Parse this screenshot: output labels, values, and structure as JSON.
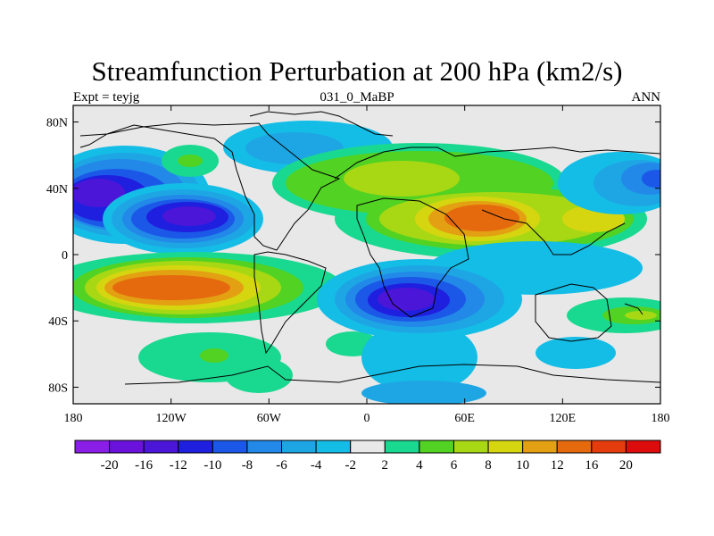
{
  "title": "Streamfunction Perturbation at 200 hPa (km2/s)",
  "subtitle_left": "Expt = teyjg",
  "subtitle_center": "031_0_MaBP",
  "subtitle_right": "ANN",
  "chart_data": {
    "type": "heatmap",
    "lon_ticks": [
      "180",
      "120W",
      "60W",
      "0",
      "60E",
      "120E",
      "180"
    ],
    "lat_ticks": [
      "80N",
      "40N",
      "0",
      "40S",
      "80S"
    ],
    "colorbar": {
      "levels": [
        "-20",
        "-16",
        "-12",
        "-10",
        "-8",
        "-6",
        "-4",
        "-2",
        "2",
        "4",
        "6",
        "8",
        "10",
        "12",
        "16",
        "20"
      ],
      "colors": [
        "#8a1ee6",
        "#6a12dc",
        "#4b16d8",
        "#1f1fe0",
        "#1c58e8",
        "#2289e8",
        "#1ea6e4",
        "#14bde6",
        "#e8e8e8",
        "#19d890",
        "#52d222",
        "#a8d814",
        "#d6d610",
        "#e3a012",
        "#e56a0e",
        "#e43c0c",
        "#dd0c0c"
      ]
    },
    "regions": [
      {
        "lon": -165,
        "lat": 38,
        "value": -14
      },
      {
        "lon": -115,
        "lat": 22,
        "value": -12
      },
      {
        "lon": -70,
        "lat": 75,
        "value": -4
      },
      {
        "lon": -115,
        "lat": 58,
        "value": 4
      },
      {
        "lon": -150,
        "lat": -18,
        "value": 8
      },
      {
        "lon": -115,
        "lat": -20,
        "value": 14
      },
      {
        "lon": -110,
        "lat": -62,
        "value": 4
      },
      {
        "lon": -70,
        "lat": -70,
        "value": 4
      },
      {
        "lon": -15,
        "lat": -55,
        "value": 4
      },
      {
        "lon": 10,
        "lat": 48,
        "value": 6
      },
      {
        "lon": 72,
        "lat": 24,
        "value": 12
      },
      {
        "lon": 118,
        "lat": 24,
        "value": 8
      },
      {
        "lon": 20,
        "lat": -25,
        "value": -14
      },
      {
        "lon": 55,
        "lat": -28,
        "value": -6
      },
      {
        "lon": 0,
        "lat": -78,
        "value": -4
      },
      {
        "lon": 150,
        "lat": -35,
        "value": 6
      },
      {
        "lon": 120,
        "lat": -58,
        "value": -4
      },
      {
        "lon": 125,
        "lat": 48,
        "value": -4
      },
      {
        "lon": 170,
        "lat": 45,
        "value": -8
      }
    ]
  }
}
